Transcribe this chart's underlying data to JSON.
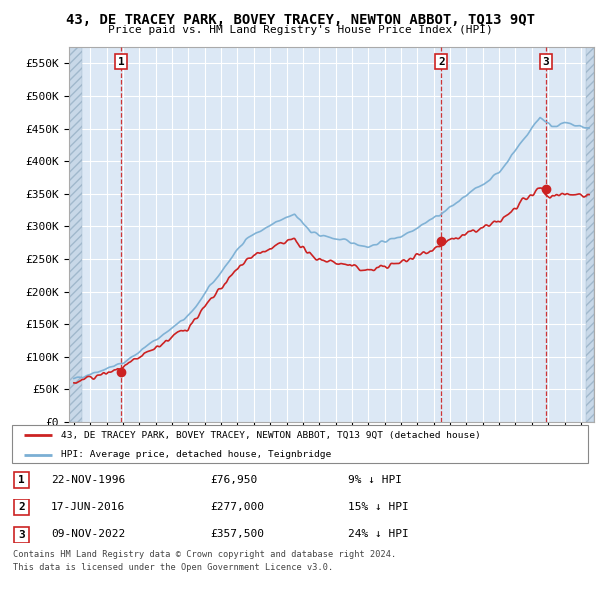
{
  "title": "43, DE TRACEY PARK, BOVEY TRACEY, NEWTON ABBOT, TQ13 9QT",
  "subtitle": "Price paid vs. HM Land Registry's House Price Index (HPI)",
  "ylim": [
    0,
    575000
  ],
  "yticks": [
    0,
    50000,
    100000,
    150000,
    200000,
    250000,
    300000,
    350000,
    400000,
    450000,
    500000,
    550000
  ],
  "ytick_labels": [
    "£0",
    "£50K",
    "£100K",
    "£150K",
    "£200K",
    "£250K",
    "£300K",
    "£350K",
    "£400K",
    "£450K",
    "£500K",
    "£550K"
  ],
  "hpi_color": "#7bafd4",
  "price_color": "#cc2222",
  "sale_marker_color": "#cc2222",
  "vline_color": "#cc2222",
  "plot_bg_color": "#dce8f5",
  "grid_color": "#ffffff",
  "hatch_area_color": "#c8d8e8",
  "sales": [
    {
      "date_num": 1996.896,
      "price": 76950,
      "label": "1",
      "date_str": "22-NOV-1996",
      "pct": "9%"
    },
    {
      "date_num": 2016.463,
      "price": 277000,
      "label": "2",
      "date_str": "17-JUN-2016",
      "pct": "15%"
    },
    {
      "date_num": 2022.858,
      "price": 357500,
      "label": "3",
      "date_str": "09-NOV-2022",
      "pct": "24%"
    }
  ],
  "legend_house_label": "43, DE TRACEY PARK, BOVEY TRACEY, NEWTON ABBOT, TQ13 9QT (detached house)",
  "legend_hpi_label": "HPI: Average price, detached house, Teignbridge",
  "footer1": "Contains HM Land Registry data © Crown copyright and database right 2024.",
  "footer2": "This data is licensed under the Open Government Licence v3.0.",
  "xmin": 1993.7,
  "xmax": 2025.8,
  "xtick_start": 1994,
  "xtick_end": 2025,
  "hatch_xend": 1994.5
}
